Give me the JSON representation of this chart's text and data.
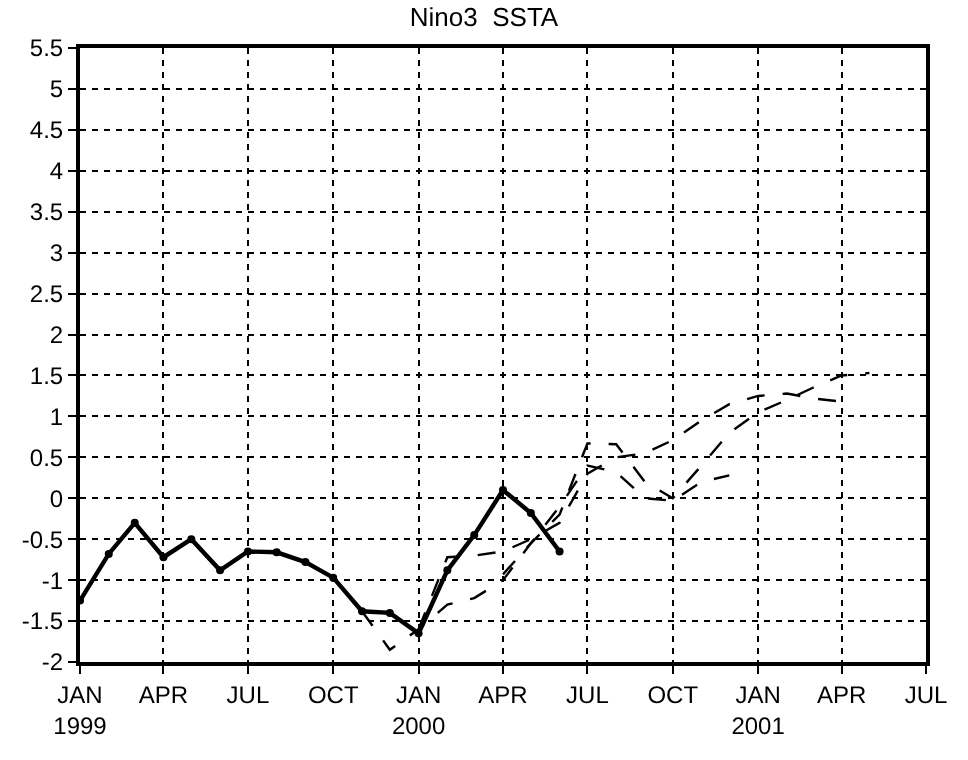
{
  "chart_data": {
    "type": "line",
    "title": "Nino3  SSTA",
    "xlim": [
      "1999-01",
      "2001-07"
    ],
    "xticks": [
      {
        "value": "1999-01",
        "label": "JAN\n1999"
      },
      {
        "value": "1999-04",
        "label": "APR"
      },
      {
        "value": "1999-07",
        "label": "JUL"
      },
      {
        "value": "1999-10",
        "label": "OCT"
      },
      {
        "value": "2000-01",
        "label": "JAN\n2000"
      },
      {
        "value": "2000-04",
        "label": "APR"
      },
      {
        "value": "2000-07",
        "label": "JUL"
      },
      {
        "value": "2000-10",
        "label": "OCT"
      },
      {
        "value": "2001-01",
        "label": "JAN\n2001"
      },
      {
        "value": "2001-04",
        "label": "APR"
      },
      {
        "value": "2001-07",
        "label": "JUL"
      }
    ],
    "ylim": [
      -2,
      5.5
    ],
    "yticks": [
      -2,
      -1.5,
      -1,
      -0.5,
      0,
      0.5,
      1,
      1.5,
      2,
      2.5,
      3,
      3.5,
      4,
      4.5,
      5,
      5.5
    ],
    "grid": true,
    "legend": false,
    "series": [
      {
        "color": "#000000",
        "marker": "circle",
        "line_style": "solid",
        "x": [
          "1999-01",
          "1999-02",
          "1999-03",
          "1999-04",
          "1999-05",
          "1999-06",
          "1999-07",
          "1999-08",
          "1999-09",
          "1999-10",
          "1999-11",
          "1999-12",
          "2000-01",
          "2000-02",
          "2000-03",
          "2000-04",
          "2000-05",
          "2000-06"
        ],
        "values": [
          -1.25,
          -0.68,
          -0.3,
          -0.72,
          -0.5,
          -0.88,
          -0.65,
          -0.66,
          -0.78,
          -0.97,
          -1.38,
          -1.4,
          -1.65,
          -0.88,
          -0.45,
          0.1,
          -0.18,
          -0.65
        ]
      },
      {
        "color": "#000000",
        "marker": "none",
        "line_style": "dashed",
        "x": [
          "1999-11",
          "1999-12",
          "2000-01",
          "2000-02",
          "2000-03",
          "2000-04",
          "2000-05",
          "2000-06",
          "2000-07",
          "2000-08",
          "2000-09",
          "2000-10",
          "2000-11",
          "2000-12"
        ],
        "values": [
          -1.38,
          -1.85,
          -1.6,
          -1.3,
          -1.22,
          -1.0,
          -0.55,
          -0.1,
          0.4,
          0.32,
          0.0,
          -0.03,
          0.2,
          0.28
        ]
      },
      {
        "color": "#000000",
        "marker": "none",
        "line_style": "dashed",
        "x": [
          "2000-01",
          "2000-02",
          "2000-03",
          "2000-04",
          "2000-05",
          "2000-06",
          "2000-07",
          "2000-08",
          "2000-09",
          "2000-10",
          "2000-11",
          "2000-12",
          "2001-01",
          "2001-02",
          "2001-03",
          "2001-04"
        ],
        "values": [
          -1.6,
          -0.72,
          -0.7,
          -0.65,
          -0.5,
          -0.3,
          0.3,
          0.5,
          0.55,
          0.71,
          0.95,
          1.15,
          1.25,
          1.28,
          1.22,
          1.18
        ]
      },
      {
        "color": "#000000",
        "marker": "none",
        "line_style": "dashed",
        "x": [
          "2000-04",
          "2000-05",
          "2000-06",
          "2000-07",
          "2000-08",
          "2000-09",
          "2000-10",
          "2000-11",
          "2000-12",
          "2001-01",
          "2001-02",
          "2001-03",
          "2001-04",
          "2001-05"
        ],
        "values": [
          -0.93,
          -0.55,
          -0.2,
          0.67,
          0.66,
          0.2,
          0.0,
          0.4,
          0.8,
          1.05,
          1.2,
          1.35,
          1.5,
          1.53
        ]
      }
    ]
  }
}
